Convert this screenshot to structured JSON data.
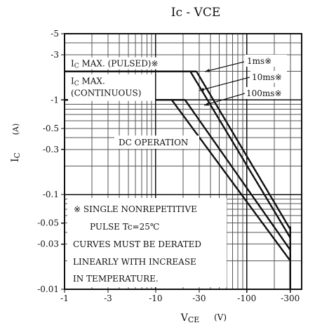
{
  "chart_data": {
    "type": "line",
    "title": "Ic - VCE",
    "title_main": "Ic",
    "title_dash": "-",
    "title_suffix": "VCE",
    "x_axis": {
      "scale": "log",
      "display_ticks": [
        "-1",
        "-3",
        "-10",
        "-30",
        "-100",
        "-300"
      ],
      "label_main": "V",
      "label_sub": "CE",
      "label_unit": "(V)",
      "range": [
        1,
        400
      ]
    },
    "y_axis": {
      "scale": "log",
      "display_ticks": [
        "-5",
        "-3",
        "-1",
        "-0.5",
        "-0.3",
        "-0.1",
        "-0.05",
        "-0.03",
        "-0.01"
      ],
      "label_main": "I",
      "label_sub": "C",
      "label_unit": "(A)",
      "range": [
        0.01,
        5
      ]
    },
    "grid": true,
    "reference_lines": [
      {
        "label_main": "I",
        "label_sub": "C",
        "label_suffix": " MAX. (PULSED)※",
        "y": 2.0
      },
      {
        "label_main": "I",
        "label_sub": "C",
        "label_suffix": " MAX.",
        "label_line2": "(CONTINUOUS)",
        "y": 1.0
      }
    ],
    "series": [
      {
        "label": "DC OPERATION",
        "points": [
          [
            15,
            1.0
          ],
          [
            300,
            0.02
          ]
        ]
      },
      {
        "label": "100ms※",
        "points": [
          [
            21,
            1.0
          ],
          [
            300,
            0.026
          ]
        ]
      },
      {
        "label": "10ms※",
        "points": [
          [
            24,
            2.0
          ],
          [
            300,
            0.035
          ]
        ]
      },
      {
        "label": "1ms※",
        "points": [
          [
            28,
            2.0
          ],
          [
            300,
            0.043
          ]
        ]
      }
    ],
    "annotation_lines": [
      "※  SINGLE NONREPETITIVE",
      "PULSE Tc=25℃",
      "CURVES MUST BE DERATED",
      "LINEARLY WITH INCREASE",
      "IN TEMPERATURE."
    ]
  }
}
